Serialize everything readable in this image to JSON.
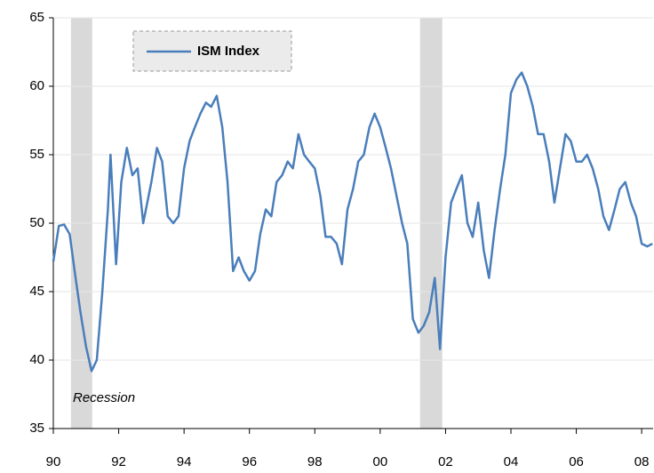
{
  "chart_data": {
    "type": "line",
    "series": [
      {
        "name": "ISM Index",
        "color": "#4a7ebb",
        "values": [
          47.2,
          49.8,
          49.9,
          49.2,
          46.2,
          43.5,
          41,
          39.2,
          40,
          45,
          51,
          55,
          47,
          53,
          55.5,
          53.5,
          54,
          50,
          53,
          55.5,
          54.5,
          50.5,
          50,
          50.5,
          54,
          56,
          57,
          58,
          58.8,
          58.5,
          59.3,
          57,
          53,
          46.5,
          47.5,
          46.5,
          45.8,
          46.5,
          49.2,
          51,
          50.5,
          53,
          53.5,
          54.5,
          54,
          56.5,
          55,
          54.5,
          54,
          52,
          49,
          49,
          48.5,
          47,
          51,
          52.5,
          54.5,
          55,
          57,
          58,
          57,
          55.5,
          54,
          52,
          50,
          48.5,
          43,
          42,
          42.5,
          43.5,
          46,
          40.8,
          47.5,
          51.5,
          52.5,
          53.5,
          50,
          49,
          51.5,
          48,
          46,
          49.5,
          52.5,
          55,
          59.5,
          60.5,
          61,
          60,
          58.5,
          56.5,
          56.5,
          54.5,
          51.5,
          54,
          56.5,
          56,
          54.5,
          54.5,
          55,
          54,
          52.5,
          50.5,
          49.5,
          51,
          52.5,
          53,
          51.5,
          50.5,
          48.5,
          48.3,
          48.5
        ]
      }
    ],
    "x": [
      1990,
      1990.17,
      1990.33,
      1990.5,
      1990.67,
      1990.83,
      1991,
      1991.17,
      1991.33,
      1991.5,
      1991.67,
      1991.75,
      1991.92,
      1992.08,
      1992.25,
      1992.42,
      1992.58,
      1992.75,
      1993,
      1993.17,
      1993.33,
      1993.5,
      1993.67,
      1993.83,
      1994,
      1994.17,
      1994.33,
      1994.5,
      1994.67,
      1994.83,
      1995,
      1995.17,
      1995.33,
      1995.5,
      1995.67,
      1995.83,
      1996,
      1996.17,
      1996.33,
      1996.5,
      1996.67,
      1996.83,
      1997,
      1997.17,
      1997.33,
      1997.5,
      1997.67,
      1997.83,
      1998,
      1998.17,
      1998.33,
      1998.5,
      1998.67,
      1998.83,
      1999,
      1999.17,
      1999.33,
      1999.5,
      1999.67,
      1999.83,
      2000,
      2000.17,
      2000.33,
      2000.5,
      2000.67,
      2000.83,
      2001,
      2001.17,
      2001.33,
      2001.5,
      2001.67,
      2001.83,
      2002,
      2002.17,
      2002.33,
      2002.5,
      2002.67,
      2002.83,
      2003,
      2003.17,
      2003.33,
      2003.5,
      2003.67,
      2003.83,
      2004,
      2004.17,
      2004.33,
      2004.5,
      2004.67,
      2004.83,
      2005,
      2005.17,
      2005.33,
      2005.5,
      2005.67,
      2005.83,
      2006,
      2006.17,
      2006.33,
      2006.5,
      2006.67,
      2006.83,
      2007,
      2007.17,
      2007.33,
      2007.5,
      2007.67,
      2007.83,
      2008,
      2008.17,
      2008.33
    ],
    "xlim": [
      1990,
      2008.35
    ],
    "xticks": [
      {
        "value": 1990,
        "label": "90"
      },
      {
        "value": 1992,
        "label": "92"
      },
      {
        "value": 1994,
        "label": "94"
      },
      {
        "value": 1996,
        "label": "96"
      },
      {
        "value": 1998,
        "label": "98"
      },
      {
        "value": 2000,
        "label": "00"
      },
      {
        "value": 2002,
        "label": "02"
      },
      {
        "value": 2004,
        "label": "04"
      },
      {
        "value": 2006,
        "label": "06"
      },
      {
        "value": 2008,
        "label": "08"
      }
    ],
    "ylim": [
      35,
      65
    ],
    "yticks": [
      35,
      40,
      45,
      50,
      55,
      60,
      65
    ],
    "grid": true,
    "recessions": [
      [
        1990.54,
        1991.19
      ],
      [
        2001.22,
        2001.9
      ]
    ],
    "recession_color": "#d9d9d9",
    "annotation": "Recession"
  }
}
